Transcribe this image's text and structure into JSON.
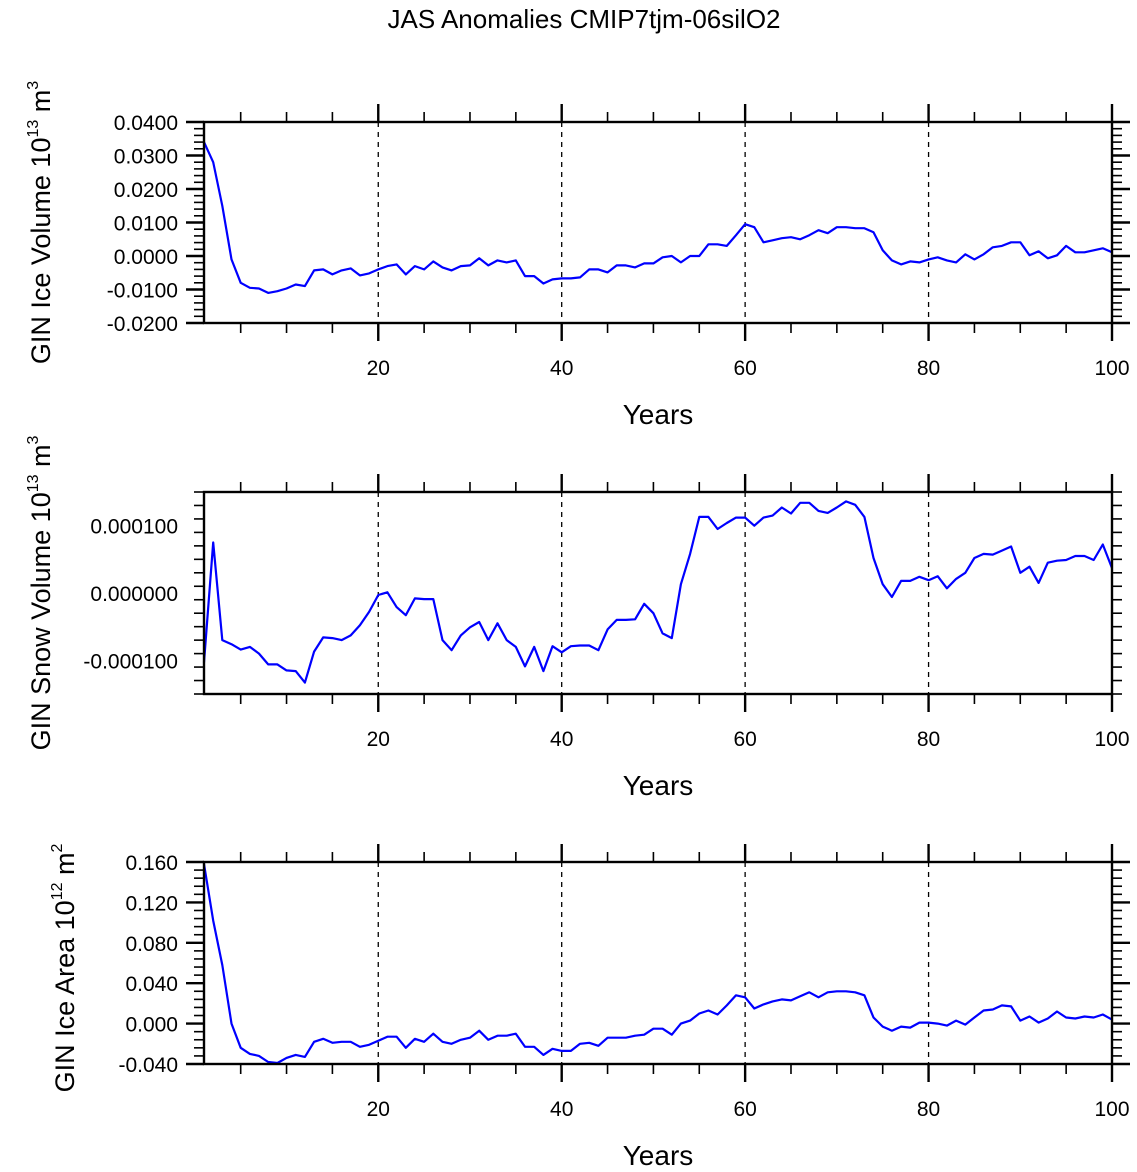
{
  "chart_data": {
    "title": "JAS Anomalies CMIP7tjm-06silO2",
    "type": "line",
    "line_color": "#0000ff",
    "grid": "dashed vertical lines at x = 20, 40, 60, 80",
    "panels": [
      {
        "ylabel_base": "GIN Ice Volume 10",
        "ylabel_exp": "13",
        "ylabel_unit": " m",
        "ylabel_unit_exp": "3",
        "xlabel": "Years",
        "xlim": [
          1,
          100
        ],
        "ylim": [
          -0.02,
          0.04
        ],
        "yticks": [
          -0.02,
          -0.01,
          0.0,
          0.01,
          0.02,
          0.03,
          0.04
        ],
        "ytick_labels": [
          "-0.0200",
          "-0.0100",
          "0.0000",
          "0.0100",
          "0.0200",
          "0.0300",
          "0.0400"
        ],
        "xticks": [
          20,
          40,
          60,
          80,
          100
        ],
        "xtick_labels": [
          "20",
          "40",
          "60",
          "80",
          "100"
        ],
        "series": [
          {
            "name": "GIN Ice Volume",
            "values": [
              0.034,
              0.028,
              0.015,
              -0.001,
              -0.008,
              -0.0095,
              -0.0097,
              -0.011,
              -0.0105,
              -0.0097,
              -0.0085,
              -0.009,
              -0.0043,
              -0.004,
              -0.0055,
              -0.0043,
              -0.0037,
              -0.0058,
              -0.0052,
              -0.004,
              -0.003,
              -0.0025,
              -0.0055,
              -0.003,
              -0.004,
              -0.0016,
              -0.0034,
              -0.0043,
              -0.003,
              -0.0028,
              -0.0007,
              -0.0028,
              -0.0013,
              -0.0019,
              -0.0013,
              -0.006,
              -0.006,
              -0.0082,
              -0.007,
              -0.0067,
              -0.0067,
              -0.0064,
              -0.004,
              -0.004,
              -0.0049,
              -0.0028,
              -0.0028,
              -0.0034,
              -0.0022,
              -0.0022,
              -0.0004,
              0.0,
              -0.0019,
              0.0,
              0.0,
              0.0035,
              0.0035,
              0.003,
              0.0062,
              0.0095,
              0.0086,
              0.0041,
              0.0047,
              0.0053,
              0.0056,
              0.005,
              0.0062,
              0.0077,
              0.0068,
              0.0086,
              0.0086,
              0.0083,
              0.0083,
              0.0071,
              0.0017,
              -0.0013,
              -0.0025,
              -0.0016,
              -0.0019,
              -0.001,
              -0.0004,
              -0.0013,
              -0.0019,
              0.0005,
              -0.001,
              0.0005,
              0.0026,
              0.003,
              0.0041,
              0.0041,
              0.0002,
              0.0014,
              -0.0007,
              0.0002,
              0.003,
              0.0011,
              0.0011,
              0.0017,
              0.0023,
              0.0011
            ]
          }
        ]
      },
      {
        "ylabel_base": "GIN Snow Volume 10",
        "ylabel_exp": "13",
        "ylabel_unit": " m",
        "ylabel_unit_exp": "3",
        "xlabel": "Years",
        "xlim": [
          1,
          100
        ],
        "ylim": [
          -0.00015,
          0.00015
        ],
        "yticks": [
          -0.0001,
          0.0,
          0.0001
        ],
        "ytick_labels": [
          "-0.000100",
          "0.000000",
          "0.000100"
        ],
        "xticks": [
          20,
          40,
          60,
          80,
          100
        ],
        "xtick_labels": [
          "20",
          "40",
          "60",
          "80",
          "100"
        ],
        "series": [
          {
            "name": "GIN Snow Volume",
            "values": [
              -0.000103,
              7.5e-05,
              -7e-05,
              -7.6e-05,
              -8.4e-05,
              -8e-05,
              -9e-05,
              -0.000106,
              -0.000106,
              -0.000115,
              -0.000116,
              -0.000133,
              -8.7e-05,
              -6.6e-05,
              -6.7e-05,
              -7e-05,
              -6.3e-05,
              -4.8e-05,
              -2.8e-05,
              -3e-06,
              1e-06,
              -2.1e-05,
              -3.3e-05,
              -8e-06,
              -9e-06,
              -9e-06,
              -7e-05,
              -8.5e-05,
              -6.3e-05,
              -5.1e-05,
              -4.3e-05,
              -7e-05,
              -4.5e-05,
              -7e-05,
              -8e-05,
              -0.000109,
              -8e-05,
              -0.000116,
              -7.9e-05,
              -8.8e-05,
              -7.9e-05,
              -7.8e-05,
              -7.8e-05,
              -8.5e-05,
              -5.4e-05,
              -4e-05,
              -4e-05,
              -3.9e-05,
              -1.6e-05,
              -3e-05,
              -6e-05,
              -6.7e-05,
              1.3e-05,
              5.8e-05,
              0.000113,
              0.000113,
              9.5e-05,
              0.000104,
              0.000112,
              0.000112,
              0.0001,
              0.000112,
              0.000115,
              0.000127,
              0.000118,
              0.000134,
              0.000134,
              0.000122,
              0.000119,
              0.000127,
              0.000136,
              0.000131,
              0.000113,
              5.2e-05,
              1.3e-05,
              -6e-06,
              1.8e-05,
              1.8e-05,
              2.4e-05,
              1.9e-05,
              2.5e-05,
              7e-06,
              2.1e-05,
              3e-05,
              5.2e-05,
              5.8e-05,
              5.7e-05,
              6.3e-05,
              6.9e-05,
              3e-05,
              3.9e-05,
              1.5e-05,
              4.5e-05,
              4.8e-05,
              4.9e-05,
              5.5e-05,
              5.5e-05,
              4.9e-05,
              7.2e-05,
              3.7e-05
            ]
          }
        ]
      },
      {
        "ylabel_base": "GIN Ice Area 10",
        "ylabel_exp": "12",
        "ylabel_unit": " m",
        "ylabel_unit_exp": "2",
        "xlabel": "Years",
        "xlim": [
          1,
          100
        ],
        "ylim": [
          -0.04,
          0.16
        ],
        "yticks": [
          -0.04,
          0.0,
          0.04,
          0.08,
          0.12,
          0.16
        ],
        "ytick_labels": [
          "-0.040",
          "0.000",
          "0.040",
          "0.080",
          "0.120",
          "0.160"
        ],
        "xticks": [
          20,
          40,
          60,
          80,
          100
        ],
        "xtick_labels": [
          "20",
          "40",
          "60",
          "80",
          "100"
        ],
        "series": [
          {
            "name": "GIN Ice Area",
            "values": [
              0.158,
              0.102,
              0.058,
              0.0,
              -0.024,
              -0.03,
              -0.032,
              -0.038,
              -0.039,
              -0.034,
              -0.031,
              -0.033,
              -0.018,
              -0.015,
              -0.019,
              -0.018,
              -0.018,
              -0.023,
              -0.021,
              -0.017,
              -0.013,
              -0.013,
              -0.024,
              -0.015,
              -0.018,
              -0.01,
              -0.018,
              -0.02,
              -0.016,
              -0.014,
              -0.007,
              -0.016,
              -0.012,
              -0.012,
              -0.01,
              -0.023,
              -0.023,
              -0.031,
              -0.025,
              -0.027,
              -0.027,
              -0.02,
              -0.019,
              -0.022,
              -0.014,
              -0.014,
              -0.014,
              -0.012,
              -0.011,
              -0.005,
              -0.005,
              -0.011,
              0.0,
              0.003,
              0.01,
              0.013,
              0.009,
              0.018,
              0.028,
              0.026,
              0.015,
              0.019,
              0.022,
              0.024,
              0.023,
              0.027,
              0.031,
              0.026,
              0.031,
              0.032,
              0.032,
              0.031,
              0.028,
              0.006,
              -0.003,
              -0.007,
              -0.003,
              -0.004,
              0.001,
              0.001,
              0.0,
              -0.002,
              0.003,
              -0.001,
              0.006,
              0.013,
              0.014,
              0.018,
              0.017,
              0.003,
              0.007,
              0.001,
              0.005,
              0.012,
              0.006,
              0.005,
              0.007,
              0.006,
              0.009,
              0.004
            ]
          }
        ]
      }
    ]
  }
}
